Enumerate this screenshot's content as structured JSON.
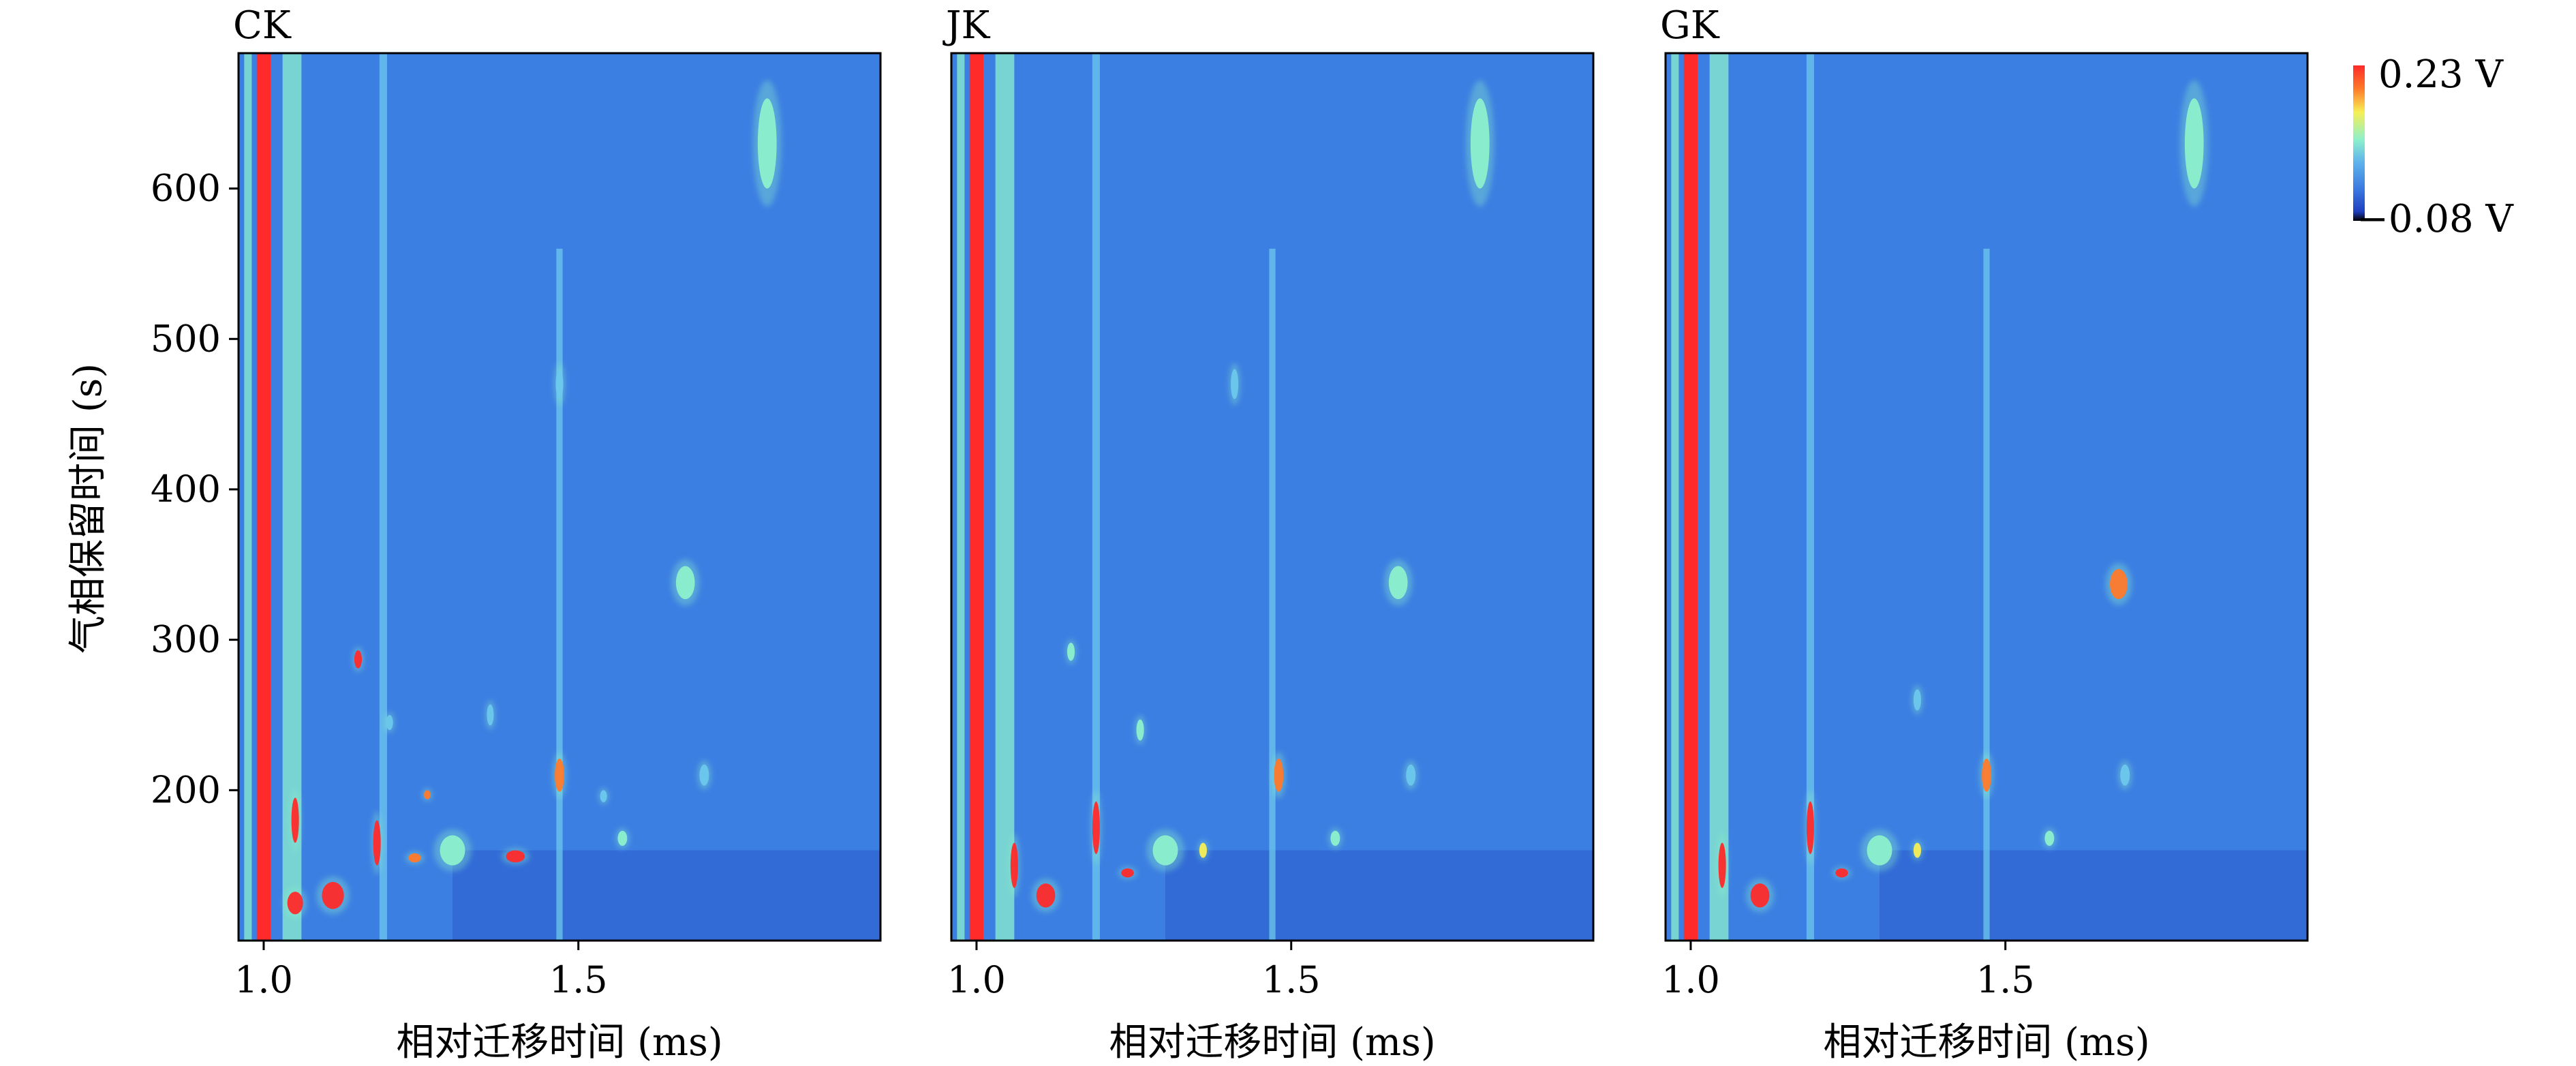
{
  "chart_data": {
    "type": "heatmap",
    "description_of_marks": "GC-IMS topographic plots; spots are peak signals",
    "ylabel": "气相保留时间 (s)",
    "xlabel": "相对迁移时间 (ms)",
    "xlim": [
      0.96,
      1.98
    ],
    "ylim": [
      100,
      690
    ],
    "xticks": [
      1.0,
      1.5
    ],
    "xtick_labels": [
      "1.0",
      "1.5"
    ],
    "yticks": [
      200,
      300,
      400,
      500,
      600
    ],
    "ytick_labels": [
      "200",
      "300",
      "400",
      "500",
      "600"
    ],
    "colorbar": {
      "max_label": "0.23 V",
      "min_label": "−0.08 V",
      "colors": [
        "#000000",
        "#1f3fbf",
        "#3a78e0",
        "#5fb4ec",
        "#8cf0cc",
        "#f6ef55",
        "#ff7a2a",
        "#ff2a2a"
      ]
    },
    "background_color": "#3c7fe2",
    "panels": [
      {
        "title": "CK",
        "bands": [
          {
            "x": 1.0,
            "w": 0.022,
            "level": 1.0,
            "y0": 100,
            "y1": 690
          },
          {
            "x": 0.975,
            "w": 0.012,
            "level": 0.5,
            "y0": 100,
            "y1": 690
          },
          {
            "x": 1.045,
            "w": 0.03,
            "level": 0.45,
            "y0": 100,
            "y1": 690
          },
          {
            "x": 1.19,
            "w": 0.012,
            "level": 0.35,
            "y0": 100,
            "y1": 690
          },
          {
            "x": 1.47,
            "w": 0.01,
            "level": 0.3,
            "y0": 100,
            "y1": 560
          }
        ],
        "spots": [
          {
            "x": 1.8,
            "y": 630,
            "w": 0.03,
            "h": 60,
            "level": 0.45
          },
          {
            "x": 1.67,
            "y": 338,
            "w": 0.03,
            "h": 22,
            "level": 0.5
          },
          {
            "x": 1.47,
            "y": 470,
            "w": 0.012,
            "h": 20,
            "level": 0.35
          },
          {
            "x": 1.47,
            "y": 210,
            "w": 0.015,
            "h": 22,
            "level": 0.75
          },
          {
            "x": 1.15,
            "y": 287,
            "w": 0.012,
            "h": 12,
            "level": 0.95
          },
          {
            "x": 1.36,
            "y": 250,
            "w": 0.01,
            "h": 14,
            "level": 0.4
          },
          {
            "x": 1.54,
            "y": 196,
            "w": 0.01,
            "h": 8,
            "level": 0.4
          },
          {
            "x": 1.7,
            "y": 210,
            "w": 0.015,
            "h": 14,
            "level": 0.4
          },
          {
            "x": 1.26,
            "y": 197,
            "w": 0.01,
            "h": 6,
            "level": 0.8
          },
          {
            "x": 1.4,
            "y": 156,
            "w": 0.03,
            "h": 8,
            "level": 1.0
          },
          {
            "x": 1.11,
            "y": 130,
            "w": 0.035,
            "h": 18,
            "level": 1.0
          },
          {
            "x": 1.05,
            "y": 125,
            "w": 0.025,
            "h": 15,
            "level": 1.0
          },
          {
            "x": 1.05,
            "y": 180,
            "w": 0.012,
            "h": 30,
            "level": 0.95
          },
          {
            "x": 1.18,
            "y": 165,
            "w": 0.012,
            "h": 30,
            "level": 0.95
          },
          {
            "x": 1.24,
            "y": 155,
            "w": 0.02,
            "h": 6,
            "level": 0.85
          },
          {
            "x": 1.57,
            "y": 168,
            "w": 0.015,
            "h": 10,
            "level": 0.45
          },
          {
            "x": 1.2,
            "y": 245,
            "w": 0.01,
            "h": 10,
            "level": 0.35
          },
          {
            "x": 1.3,
            "y": 160,
            "w": 0.04,
            "h": 20,
            "level": 0.55
          }
        ]
      },
      {
        "title": "JK",
        "bands": [
          {
            "x": 1.0,
            "w": 0.022,
            "level": 1.0,
            "y0": 100,
            "y1": 690
          },
          {
            "x": 0.975,
            "w": 0.012,
            "level": 0.5,
            "y0": 100,
            "y1": 690
          },
          {
            "x": 1.045,
            "w": 0.03,
            "level": 0.45,
            "y0": 100,
            "y1": 690
          },
          {
            "x": 1.19,
            "w": 0.012,
            "level": 0.35,
            "y0": 100,
            "y1": 690
          },
          {
            "x": 1.47,
            "w": 0.01,
            "level": 0.3,
            "y0": 100,
            "y1": 560
          }
        ],
        "spots": [
          {
            "x": 1.8,
            "y": 630,
            "w": 0.03,
            "h": 60,
            "level": 0.45
          },
          {
            "x": 1.67,
            "y": 338,
            "w": 0.03,
            "h": 22,
            "level": 0.5
          },
          {
            "x": 1.41,
            "y": 470,
            "w": 0.012,
            "h": 20,
            "level": 0.35
          },
          {
            "x": 1.48,
            "y": 210,
            "w": 0.015,
            "h": 22,
            "level": 0.8
          },
          {
            "x": 1.15,
            "y": 292,
            "w": 0.012,
            "h": 12,
            "level": 0.55
          },
          {
            "x": 1.26,
            "y": 240,
            "w": 0.012,
            "h": 14,
            "level": 0.45
          },
          {
            "x": 1.69,
            "y": 210,
            "w": 0.015,
            "h": 14,
            "level": 0.4
          },
          {
            "x": 1.57,
            "y": 168,
            "w": 0.015,
            "h": 10,
            "level": 0.45
          },
          {
            "x": 1.11,
            "y": 130,
            "w": 0.03,
            "h": 16,
            "level": 1.0
          },
          {
            "x": 1.06,
            "y": 150,
            "w": 0.012,
            "h": 30,
            "level": 0.95
          },
          {
            "x": 1.19,
            "y": 175,
            "w": 0.012,
            "h": 35,
            "level": 0.9
          },
          {
            "x": 1.24,
            "y": 145,
            "w": 0.02,
            "h": 6,
            "level": 0.9
          },
          {
            "x": 1.36,
            "y": 160,
            "w": 0.012,
            "h": 10,
            "level": 0.6
          },
          {
            "x": 1.3,
            "y": 160,
            "w": 0.04,
            "h": 20,
            "level": 0.55
          }
        ]
      },
      {
        "title": "GK",
        "bands": [
          {
            "x": 1.0,
            "w": 0.022,
            "level": 1.0,
            "y0": 100,
            "y1": 690
          },
          {
            "x": 0.975,
            "w": 0.012,
            "level": 0.5,
            "y0": 100,
            "y1": 690
          },
          {
            "x": 1.045,
            "w": 0.03,
            "level": 0.45,
            "y0": 100,
            "y1": 690
          },
          {
            "x": 1.19,
            "w": 0.012,
            "level": 0.35,
            "y0": 100,
            "y1": 690
          },
          {
            "x": 1.47,
            "w": 0.01,
            "level": 0.3,
            "y0": 100,
            "y1": 560
          }
        ],
        "spots": [
          {
            "x": 1.8,
            "y": 630,
            "w": 0.03,
            "h": 60,
            "level": 0.45
          },
          {
            "x": 1.68,
            "y": 337,
            "w": 0.028,
            "h": 20,
            "level": 0.85
          },
          {
            "x": 1.47,
            "y": 210,
            "w": 0.015,
            "h": 22,
            "level": 0.8
          },
          {
            "x": 1.69,
            "y": 210,
            "w": 0.015,
            "h": 14,
            "level": 0.4
          },
          {
            "x": 1.36,
            "y": 260,
            "w": 0.012,
            "h": 14,
            "level": 0.4
          },
          {
            "x": 1.11,
            "y": 130,
            "w": 0.03,
            "h": 16,
            "level": 1.0
          },
          {
            "x": 1.05,
            "y": 150,
            "w": 0.012,
            "h": 30,
            "level": 0.95
          },
          {
            "x": 1.19,
            "y": 175,
            "w": 0.012,
            "h": 35,
            "level": 0.9
          },
          {
            "x": 1.24,
            "y": 145,
            "w": 0.02,
            "h": 6,
            "level": 0.9
          },
          {
            "x": 1.36,
            "y": 160,
            "w": 0.012,
            "h": 10,
            "level": 0.6
          },
          {
            "x": 1.57,
            "y": 168,
            "w": 0.015,
            "h": 10,
            "level": 0.45
          },
          {
            "x": 1.3,
            "y": 160,
            "w": 0.04,
            "h": 20,
            "level": 0.55
          }
        ]
      }
    ]
  }
}
